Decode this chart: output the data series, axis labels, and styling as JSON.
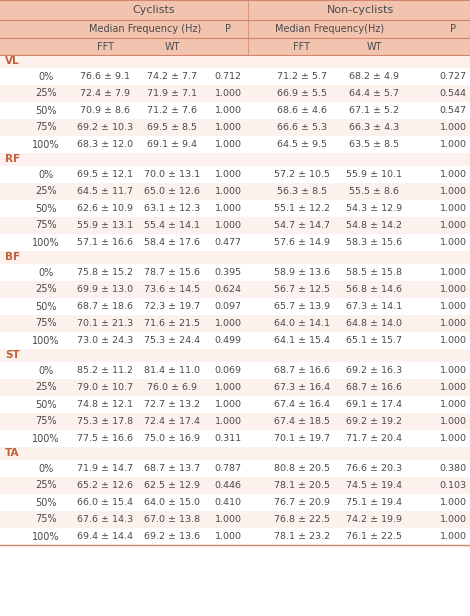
{
  "header_bg": "#f2c4b0",
  "row_bg_odd": "#fdf1ed",
  "row_bg_even": "#ffffff",
  "text_color": "#4a4a4a",
  "label_color": "#c0603a",
  "border_color": "#d4846a",
  "muscles": [
    "VL",
    "RF",
    "BF",
    "ST",
    "TA"
  ],
  "percentages": [
    "0%",
    "25%",
    "50%",
    "75%",
    "100%"
  ],
  "data": {
    "VL": {
      "cyclists_fft": [
        "76.6 ± 9.1",
        "72.4 ± 7.9",
        "70.9 ± 8.6",
        "69.2 ± 10.3",
        "68.3 ± 12.0"
      ],
      "cyclists_wt": [
        "74.2 ± 7.7",
        "71.9 ± 7.1",
        "71.2 ± 7.6",
        "69.5 ± 8.5",
        "69.1 ± 9.4"
      ],
      "cyclists_p": [
        "0.712",
        "1.000",
        "1.000",
        "1.000",
        "1.000"
      ],
      "noncyc_fft": [
        "71.2 ± 5.7",
        "66.9 ± 5.5",
        "68.6 ± 4.6",
        "66.6 ± 5.3",
        "64.5 ± 9.5"
      ],
      "noncyc_wt": [
        "68.2 ± 4.9",
        "64.4 ± 5.7",
        "67.1 ± 5.2",
        "66.3 ± 4.3",
        "63.5 ± 8.5"
      ],
      "noncyc_p": [
        "0.727",
        "0.544",
        "0.547",
        "1.000",
        "1.000"
      ]
    },
    "RF": {
      "cyclists_fft": [
        "69.5 ± 12.1",
        "64.5 ± 11.7",
        "62.6 ± 10.9",
        "55.9 ± 13.1",
        "57.1 ± 16.6"
      ],
      "cyclists_wt": [
        "70.0 ± 13.1",
        "65.0 ± 12.6",
        "63.1 ± 12.3",
        "55.4 ± 14.1",
        "58.4 ± 17.6"
      ],
      "cyclists_p": [
        "1.000",
        "1.000",
        "1.000",
        "1.000",
        "0.477"
      ],
      "noncyc_fft": [
        "57.2 ± 10.5",
        "56.3 ± 8.5",
        "55.1 ± 12.2",
        "54.7 ± 14.7",
        "57.6 ± 14.9"
      ],
      "noncyc_wt": [
        "55.9 ± 10.1",
        "55.5 ± 8.6",
        "54.3 ± 12.9",
        "54.8 ± 14.2",
        "58.3 ± 15.6"
      ],
      "noncyc_p": [
        "1.000",
        "1.000",
        "1.000",
        "1.000",
        "1.000"
      ]
    },
    "BF": {
      "cyclists_fft": [
        "75.8 ± 15.2",
        "69.9 ± 13.0",
        "68.7 ± 18.6",
        "70.1 ± 21.3",
        "73.0 ± 24.3"
      ],
      "cyclists_wt": [
        "78.7 ± 15.6",
        "73.6 ± 14.5",
        "72.3 ± 19.7",
        "71.6 ± 21.5",
        "75.3 ± 24.4"
      ],
      "cyclists_p": [
        "0.395",
        "0.624",
        "0.097",
        "1.000",
        "0.499"
      ],
      "noncyc_fft": [
        "58.9 ± 13.6",
        "56.7 ± 12.5",
        "65.7 ± 13.9",
        "64.0 ± 14.1",
        "64.1 ± 15.4"
      ],
      "noncyc_wt": [
        "58.5 ± 15.8",
        "56.8 ± 14.6",
        "67.3 ± 14.1",
        "64.8 ± 14.0",
        "65.1 ± 15.7"
      ],
      "noncyc_p": [
        "1.000",
        "1.000",
        "1.000",
        "1.000",
        "1.000"
      ]
    },
    "ST": {
      "cyclists_fft": [
        "85.2 ± 11.2",
        "79.0 ± 10.7",
        "74.8 ± 12.1",
        "75.3 ± 17.8",
        "77.5 ± 16.6"
      ],
      "cyclists_wt": [
        "81.4 ± 11.0",
        "76.0 ± 6.9",
        "72.7 ± 13.2",
        "72.4 ± 17.4",
        "75.0 ± 16.9"
      ],
      "cyclists_p": [
        "0.069",
        "1.000",
        "1.000",
        "1.000",
        "0.311"
      ],
      "noncyc_fft": [
        "68.7 ± 16.6",
        "67.3 ± 16.4",
        "67.4 ± 16.4",
        "67.4 ± 18.5",
        "70.1 ± 19.7"
      ],
      "noncyc_wt": [
        "69.2 ± 16.3",
        "68.7 ± 16.6",
        "69.1 ± 17.4",
        "69.2 ± 19.2",
        "71.7 ± 20.4"
      ],
      "noncyc_p": [
        "1.000",
        "1.000",
        "1.000",
        "1.000",
        "1.000"
      ]
    },
    "TA": {
      "cyclists_fft": [
        "71.9 ± 14.7",
        "65.2 ± 12.6",
        "66.0 ± 15.4",
        "67.6 ± 14.3",
        "69.4 ± 14.4"
      ],
      "cyclists_wt": [
        "68.7 ± 13.7",
        "62.5 ± 12.9",
        "64.0 ± 15.0",
        "67.0 ± 13.8",
        "69.2 ± 13.6"
      ],
      "cyclists_p": [
        "0.787",
        "0.446",
        "0.410",
        "1.000",
        "1.000"
      ],
      "noncyc_fft": [
        "80.8 ± 20.5",
        "78.1 ± 20.5",
        "76.7 ± 20.9",
        "76.8 ± 22.5",
        "78.1 ± 23.2"
      ],
      "noncyc_wt": [
        "76.6 ± 20.3",
        "74.5 ± 19.4",
        "75.1 ± 19.4",
        "74.2 ± 19.9",
        "76.1 ± 22.5"
      ],
      "noncyc_p": [
        "0.380",
        "0.103",
        "1.000",
        "1.000",
        "1.000"
      ]
    }
  }
}
